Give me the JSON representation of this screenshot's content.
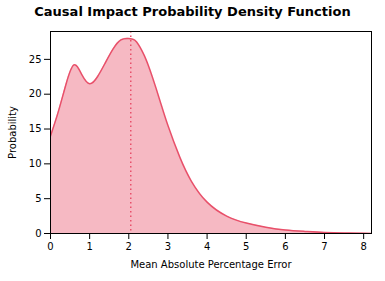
{
  "chart_data": {
    "type": "area",
    "title": "Causal Impact Probability Density Function",
    "xlabel": "Mean Absolute Percentage Error",
    "ylabel": "Probability",
    "x": [
      0.0,
      0.2,
      0.4,
      0.6,
      0.8,
      1.0,
      1.2,
      1.4,
      1.6,
      1.8,
      2.0,
      2.1,
      2.2,
      2.4,
      2.6,
      2.8,
      3.0,
      3.3,
      3.6,
      4.0,
      4.5,
      5.0,
      5.5,
      6.0,
      6.5,
      7.0,
      7.5,
      8.0,
      8.2
    ],
    "series": [
      {
        "color": "#e8506a",
        "values": [
          14.0,
          17.5,
          21.5,
          24.2,
          22.8,
          21.5,
          22.5,
          24.5,
          26.5,
          27.8,
          28.0,
          27.9,
          27.5,
          25.5,
          22.5,
          19.0,
          15.5,
          11.0,
          7.5,
          4.5,
          2.5,
          1.5,
          0.9,
          0.5,
          0.3,
          0.15,
          0.07,
          0.03,
          0.01
        ]
      }
    ],
    "median": {
      "value": 2.05,
      "color": "#e8506a",
      "line_style": "dotted"
    },
    "xlim": [
      0,
      8.2
    ],
    "xticks": [
      0,
      1,
      2,
      3,
      4,
      5,
      6,
      7,
      8
    ],
    "ylim": [
      0,
      29
    ],
    "yticks": [
      0,
      5,
      10,
      15,
      20,
      25
    ],
    "grid": false
  }
}
